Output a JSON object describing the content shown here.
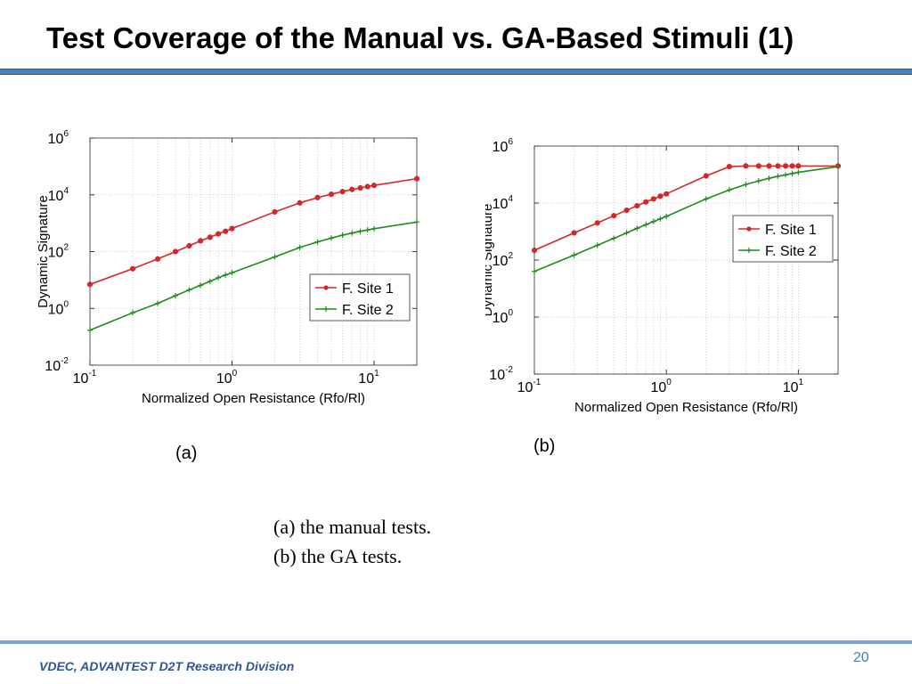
{
  "slide": {
    "title": "Test Coverage of the Manual vs. GA-Based Stimuli (1)",
    "panel_a_label": "(a)",
    "panel_b_label": "(b)",
    "caption_line1": "(a) the manual tests.",
    "caption_line2": "(b) the GA tests.",
    "footer": "VDEC, ADVANTEST D2T Research Division",
    "page_number": "20"
  },
  "colors": {
    "series1": "#d62728",
    "series2": "#1f8a1f",
    "accent": "#4a7ebb"
  },
  "chart_data": [
    {
      "type": "line",
      "xlabel": "Normalized Open Resistance (Rfo/Rl)",
      "ylabel": "Dynamic Signature",
      "xscale": "log",
      "yscale": "log",
      "xlim": [
        0.1,
        20
      ],
      "ylim": [
        0.01,
        1000000
      ],
      "xticks": [
        0.1,
        1,
        10
      ],
      "yticks": [
        0.01,
        1,
        100,
        10000,
        1000000
      ],
      "grid": true,
      "legend_position": "lower-right",
      "x": [
        0.1,
        0.2,
        0.3,
        0.4,
        0.5,
        0.6,
        0.7,
        0.8,
        0.9,
        1,
        2,
        3,
        4,
        5,
        6,
        7,
        8,
        9,
        10,
        20
      ],
      "series": [
        {
          "name": "F. Site 1",
          "marker": "circle",
          "values": [
            7,
            25,
            55,
            100,
            160,
            240,
            320,
            420,
            520,
            650,
            2500,
            5200,
            8000,
            10500,
            13000,
            15500,
            17500,
            19500,
            21500,
            37000
          ]
        },
        {
          "name": "F. Site 2",
          "marker": "plus",
          "values": [
            0.17,
            0.7,
            1.5,
            2.8,
            4.5,
            6.5,
            9,
            12,
            15,
            18,
            65,
            140,
            220,
            300,
            380,
            450,
            520,
            580,
            640,
            1100
          ]
        }
      ]
    },
    {
      "type": "line",
      "xlabel": "Normalized Open Resistance (Rfo/Rl)",
      "ylabel": "Dynamic Signature",
      "xscale": "log",
      "yscale": "log",
      "xlim": [
        0.1,
        20
      ],
      "ylim": [
        0.01,
        1000000
      ],
      "xticks": [
        0.1,
        1,
        10
      ],
      "yticks": [
        0.01,
        1,
        100,
        10000,
        1000000
      ],
      "grid": true,
      "legend_position": "right",
      "x": [
        0.1,
        0.2,
        0.3,
        0.4,
        0.5,
        0.6,
        0.7,
        0.8,
        0.9,
        1,
        2,
        3,
        4,
        5,
        6,
        7,
        8,
        9,
        10,
        20
      ],
      "series": [
        {
          "name": "F. Site 1",
          "marker": "circle",
          "values": [
            220,
            900,
            2000,
            3600,
            5600,
            8000,
            11000,
            14000,
            17500,
            21000,
            90000,
            190000,
            200000,
            200000,
            200000,
            200000,
            200000,
            200000,
            200000,
            200000
          ]
        },
        {
          "name": "F. Site 2",
          "marker": "plus",
          "values": [
            40,
            150,
            330,
            580,
            900,
            1300,
            1750,
            2250,
            2800,
            3400,
            14000,
            29000,
            45000,
            60000,
            74000,
            87000,
            98000,
            109000,
            120000,
            190000
          ]
        }
      ]
    }
  ]
}
